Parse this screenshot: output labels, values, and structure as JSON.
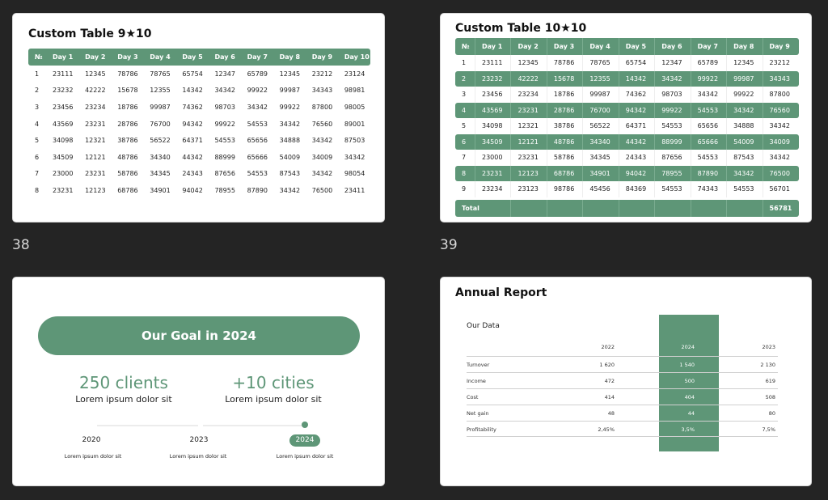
{
  "slide38": {
    "number": "38",
    "title": "Custom Table 9★10",
    "headers": [
      "№",
      "Day 1",
      "Day 2",
      "Day 3",
      "Day 4",
      "Day 5",
      "Day 6",
      "Day 7",
      "Day 8",
      "Day 9",
      "Day 10"
    ],
    "rows": [
      [
        "1",
        "23111",
        "12345",
        "78786",
        "78765",
        "65754",
        "12347",
        "65789",
        "12345",
        "23212",
        "23124"
      ],
      [
        "2",
        "23232",
        "42222",
        "15678",
        "12355",
        "14342",
        "34342",
        "99922",
        "99987",
        "34343",
        "98981"
      ],
      [
        "3",
        "23456",
        "23234",
        "18786",
        "99987",
        "74362",
        "98703",
        "34342",
        "99922",
        "87800",
        "98005"
      ],
      [
        "4",
        "43569",
        "23231",
        "28786",
        "76700",
        "94342",
        "99922",
        "54553",
        "34342",
        "76560",
        "89001"
      ],
      [
        "5",
        "34098",
        "12321",
        "38786",
        "56522",
        "64371",
        "54553",
        "65656",
        "34888",
        "34342",
        "87503"
      ],
      [
        "6",
        "34509",
        "12121",
        "48786",
        "34340",
        "44342",
        "88999",
        "65666",
        "54009",
        "34009",
        "34342"
      ],
      [
        "7",
        "23000",
        "23231",
        "58786",
        "34345",
        "24343",
        "87656",
        "54553",
        "87543",
        "34342",
        "98054"
      ],
      [
        "8",
        "23231",
        "12123",
        "68786",
        "34901",
        "94042",
        "78955",
        "87890",
        "34342",
        "76500",
        "23411"
      ]
    ]
  },
  "slide39": {
    "number": "39",
    "title": "Custom Table 10★10",
    "headers": [
      "№",
      "Day 1",
      "Day 2",
      "Day 3",
      "Day 4",
      "Day 5",
      "Day 6",
      "Day 7",
      "Day 8",
      "Day 9"
    ],
    "rows": [
      [
        "1",
        "23111",
        "12345",
        "78786",
        "78765",
        "65754",
        "12347",
        "65789",
        "12345",
        "23212"
      ],
      [
        "2",
        "23232",
        "42222",
        "15678",
        "12355",
        "14342",
        "34342",
        "99922",
        "99987",
        "34343"
      ],
      [
        "3",
        "23456",
        "23234",
        "18786",
        "99987",
        "74362",
        "98703",
        "34342",
        "99922",
        "87800"
      ],
      [
        "4",
        "43569",
        "23231",
        "28786",
        "76700",
        "94342",
        "99922",
        "54553",
        "34342",
        "76560"
      ],
      [
        "5",
        "34098",
        "12321",
        "38786",
        "56522",
        "64371",
        "54553",
        "65656",
        "34888",
        "34342"
      ],
      [
        "6",
        "34509",
        "12121",
        "48786",
        "34340",
        "44342",
        "88999",
        "65666",
        "54009",
        "34009"
      ],
      [
        "7",
        "23000",
        "23231",
        "58786",
        "34345",
        "24343",
        "87656",
        "54553",
        "87543",
        "34342"
      ],
      [
        "8",
        "23231",
        "12123",
        "68786",
        "34901",
        "94042",
        "78955",
        "87890",
        "34342",
        "76500"
      ],
      [
        "9",
        "23234",
        "23123",
        "98786",
        "45456",
        "84369",
        "54553",
        "74343",
        "54553",
        "56701"
      ]
    ],
    "highlight_rows": [
      2,
      4,
      6,
      8
    ],
    "total_label": "Total",
    "total_value": "56781"
  },
  "slide40": {
    "goal_title": "Our Goal in 2024",
    "stat1_value": "250 clients",
    "stat1_text": "Lorem ipsum dolor sit",
    "stat2_value": "+10 cities",
    "stat2_text": "Lorem ipsum dolor sit",
    "timeline": [
      {
        "year": "2020",
        "caption": "Lorem ipsum dolor sit"
      },
      {
        "year": "2023",
        "caption": "Lorem ipsum dolor sit"
      },
      {
        "year": "2024",
        "caption": "Lorem ipsum dolor sit"
      }
    ]
  },
  "slide41": {
    "title": "Annual Report",
    "subtitle": "Our Data",
    "columns": [
      "2022",
      "2024",
      "2023"
    ],
    "rows": [
      {
        "label": "Turnover",
        "values": [
          "1 620",
          "1 540",
          "2 130"
        ]
      },
      {
        "label": "Income",
        "values": [
          "472",
          "500",
          "619"
        ]
      },
      {
        "label": "Cost",
        "values": [
          "414",
          "404",
          "508"
        ]
      },
      {
        "label": "Net gain",
        "values": [
          "48",
          "44",
          "80"
        ]
      },
      {
        "label": "Profitability",
        "values": [
          "2,45%",
          "3,5%",
          "7,5%"
        ]
      }
    ]
  },
  "colors": {
    "accent": "#5e9677",
    "background": "#242424",
    "slide": "#ffffff"
  }
}
